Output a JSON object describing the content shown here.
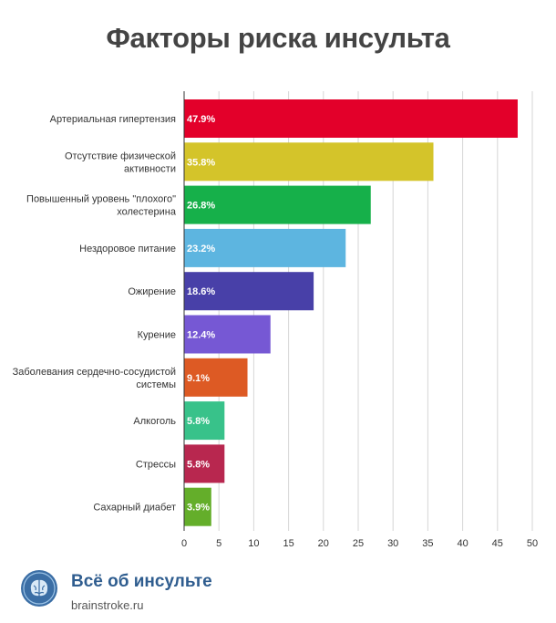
{
  "chart_data": {
    "type": "bar",
    "orientation": "horizontal",
    "title": "Факторы риска инсульта",
    "categories": [
      "Артериальная гипертензия",
      "Отсутствие физической активности",
      "Повышенный уровень \"плохого\" холестерина",
      "Нездоровое питание",
      "Ожирение",
      "Курение",
      "Заболевания сердечно-сосудистой системы",
      "Алкоголь",
      "Стрессы",
      "Сахарный диабет"
    ],
    "values": [
      47.9,
      35.8,
      26.8,
      23.2,
      18.6,
      12.4,
      9.1,
      5.8,
      5.8,
      3.9
    ],
    "value_labels": [
      "47.9%",
      "35.8%",
      "26.8%",
      "23.2%",
      "18.6%",
      "12.4%",
      "9.1%",
      "5.8%",
      "5.8%",
      "3.9%"
    ],
    "colors": [
      "#e3002a",
      "#d4c42a",
      "#16b04a",
      "#5db5e0",
      "#4840a8",
      "#7658d4",
      "#dd5a24",
      "#38c28a",
      "#b8274f",
      "#64ae2a"
    ],
    "xlim": [
      0,
      50
    ],
    "xticks": [
      "0",
      "5",
      "10",
      "15",
      "20",
      "25",
      "30",
      "35",
      "40",
      "45",
      "50"
    ],
    "grid": true,
    "xlabel": "",
    "ylabel": ""
  },
  "footer": {
    "brand_name": "Всё об инсульте",
    "brand_url": "brainstroke.ru",
    "logo_icon": "brain-icon",
    "brand_color": "#2f5d8f"
  }
}
